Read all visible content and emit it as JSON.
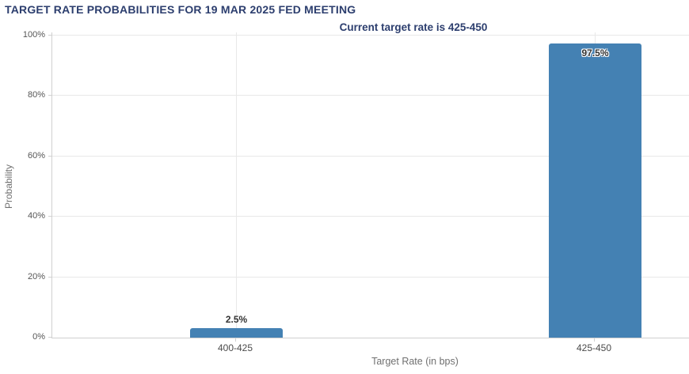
{
  "header": {
    "title": "TARGET RATE PROBABILITIES FOR 19 MAR 2025 FED MEETING",
    "subtitle": "Current target rate is 425-450"
  },
  "colors": {
    "title_text": "#2c3e6e",
    "bar_fill": "#4481b3",
    "gridline": "#e8e8e8",
    "axis_line": "#d0d0d0",
    "tick_label": "#555555",
    "category_label": "#4a4a4a",
    "axis_title": "#707070",
    "value_label": "#333333"
  },
  "chart_data": {
    "type": "bar",
    "title": "TARGET RATE PROBABILITIES FOR 19 MAR 2025 FED MEETING",
    "subtitle": "Current target rate is 425-450",
    "categories": [
      "400-425",
      "425-450"
    ],
    "values": [
      2.5,
      97.5
    ],
    "value_labels": [
      "2.5%",
      "97.5%"
    ],
    "xlabel": "Target Rate (in bps)",
    "ylabel": "Probability",
    "ylim": [
      0,
      100
    ],
    "yticks": [
      0,
      20,
      40,
      60,
      80,
      100
    ],
    "ytick_labels": [
      "0%",
      "20%",
      "40%",
      "60%",
      "80%",
      "100%"
    ],
    "grid": true,
    "legend": false
  }
}
